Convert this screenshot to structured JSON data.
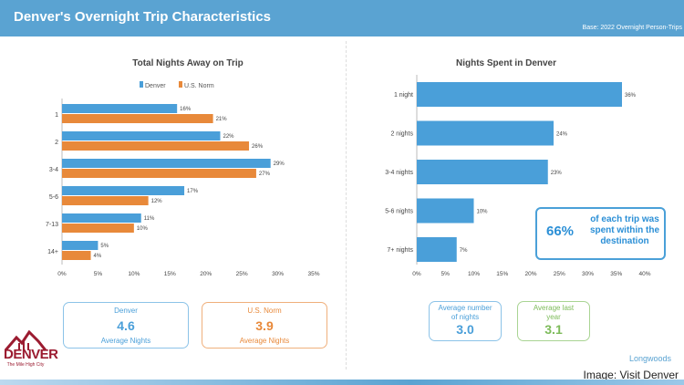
{
  "header": {
    "title": "Denver's Overnight Trip Characteristics",
    "base": "Base: 2022 Overnight Person-Trips"
  },
  "colors": {
    "denver": "#4a9fd9",
    "norm": "#e8893a",
    "last_year": "#7dbb5a",
    "header": "#5aa3d2",
    "logo": "#9b1b30"
  },
  "chart_data": [
    {
      "type": "bar",
      "orientation": "horizontal",
      "title": "Total Nights Away on Trip",
      "categories": [
        "1",
        "2",
        "3-4",
        "5-6",
        "7-13",
        "14+"
      ],
      "series": [
        {
          "name": "Denver",
          "values": [
            16,
            22,
            29,
            17,
            11,
            5
          ]
        },
        {
          "name": "U.S. Norm",
          "values": [
            21,
            26,
            27,
            12,
            10,
            4
          ]
        }
      ],
      "xlim": [
        0,
        35
      ],
      "xticks": [
        "0%",
        "5%",
        "10%",
        "15%",
        "20%",
        "25%",
        "30%",
        "35%"
      ],
      "legend": "top",
      "unit": "%"
    },
    {
      "type": "bar",
      "orientation": "horizontal",
      "title": "Nights Spent in Denver",
      "categories": [
        "1 night",
        "2 nights",
        "3-4 nights",
        "5-6 nights",
        "7+ nights"
      ],
      "values": [
        36,
        24,
        23,
        10,
        7
      ],
      "xlim": [
        0,
        40
      ],
      "xticks": [
        "0%",
        "5%",
        "10%",
        "15%",
        "20%",
        "25%",
        "30%",
        "35%",
        "40%"
      ],
      "unit": "%"
    }
  ],
  "left_boxes": [
    {
      "label": "Denver",
      "value": "4.6",
      "sub": "Average Nights"
    },
    {
      "label": "U.S. Norm",
      "value": "3.9",
      "sub": "Average Nights"
    }
  ],
  "right_boxes": [
    {
      "label": "Average number of nights",
      "value": "3.0"
    },
    {
      "label": "Average last year",
      "value": "3.1"
    }
  ],
  "callout": {
    "pct": "66%",
    "text": "of each trip was spent within the destination"
  },
  "logo": {
    "name": "DENVER",
    "tagline": "The Mile High City"
  },
  "longwoods": "Longwoods",
  "credit": "Image: Visit Denver"
}
